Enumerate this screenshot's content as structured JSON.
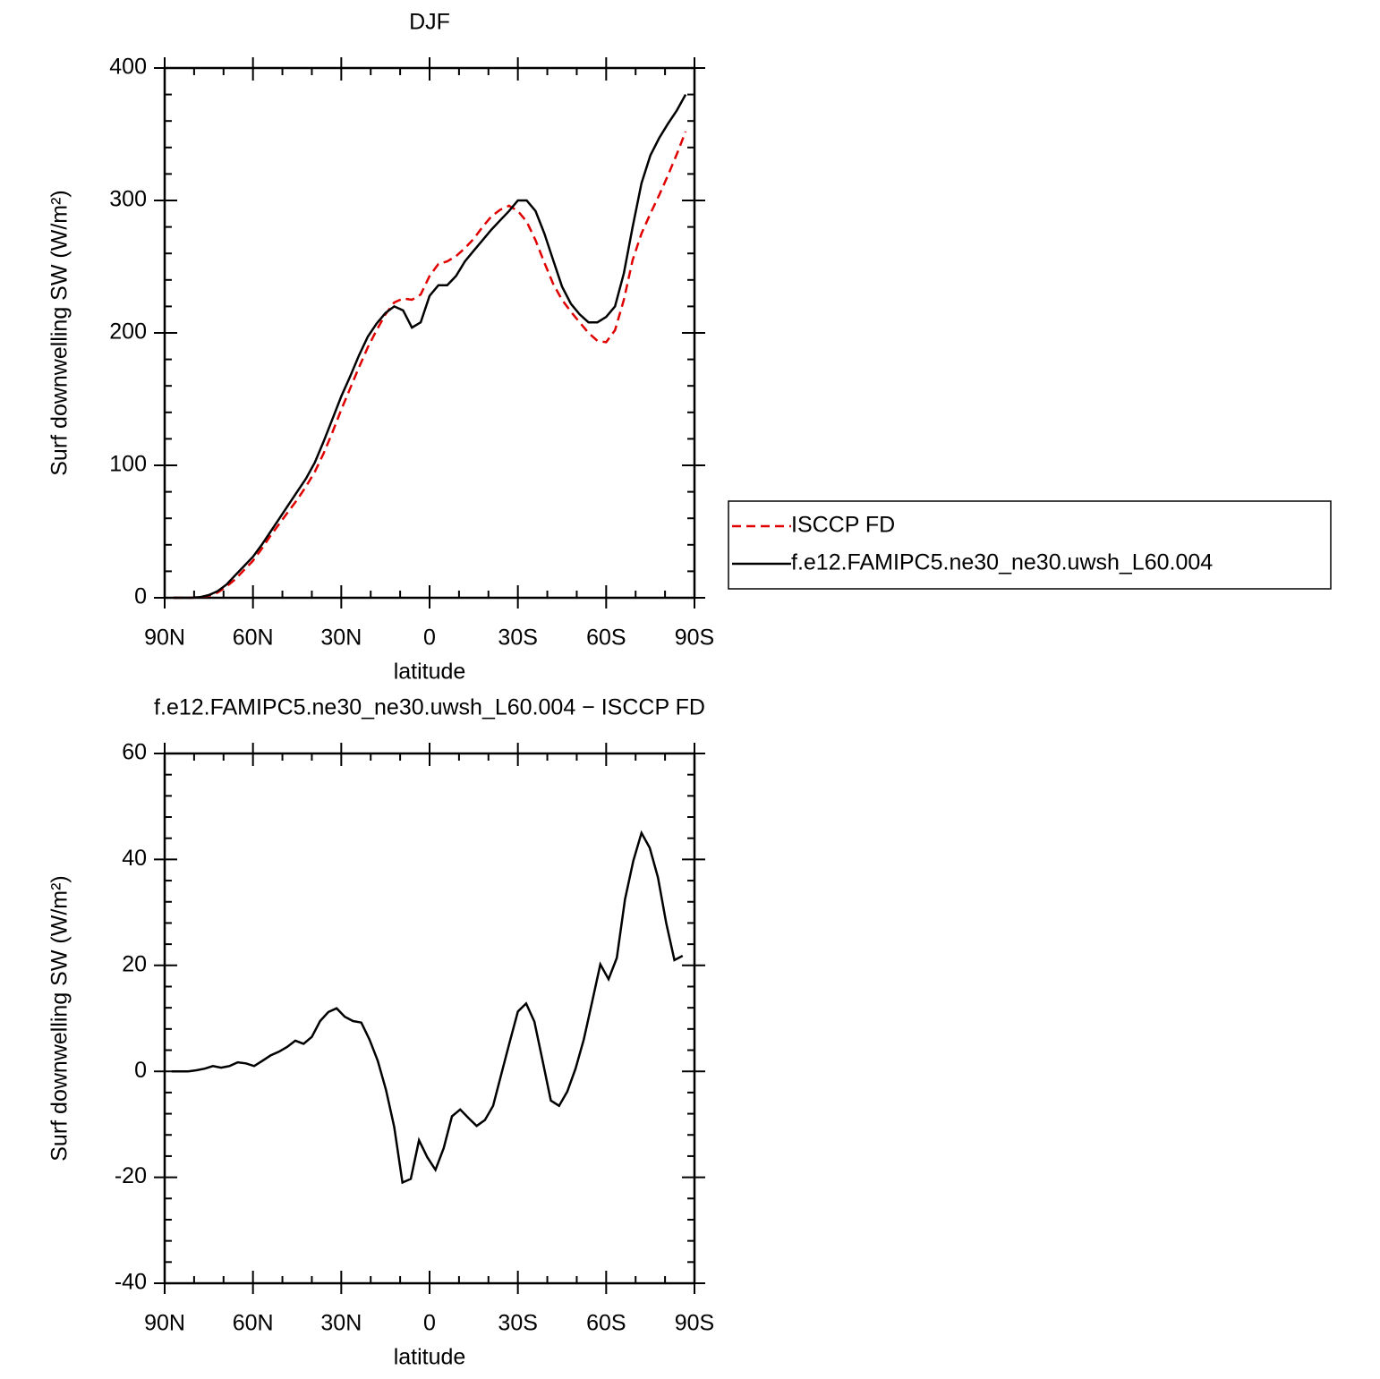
{
  "chart_data": [
    {
      "type": "line",
      "title": "DJF",
      "xlabel": "latitude",
      "ylabel": "Surf downwelling SW (W/m²)",
      "xlim": [
        90,
        -90
      ],
      "ylim": [
        0,
        400
      ],
      "xticks": [
        {
          "value": 90,
          "label": "90N"
        },
        {
          "value": 60,
          "label": "60N"
        },
        {
          "value": 30,
          "label": "30N"
        },
        0,
        {
          "value": -30,
          "label": "30S"
        },
        {
          "value": -60,
          "label": "60S"
        },
        {
          "value": -90,
          "label": "90S"
        }
      ],
      "yticks": [
        0,
        100,
        200,
        300,
        400
      ],
      "legend": "right",
      "x": [
        87,
        84,
        81,
        78,
        75,
        72,
        69,
        66,
        63,
        60,
        57,
        54,
        51,
        48,
        45,
        42,
        39,
        36,
        33,
        30,
        27,
        24,
        21,
        18,
        15,
        12,
        9,
        6,
        3,
        0,
        -3,
        -6,
        -9,
        -12,
        -15,
        -18,
        -21,
        -24,
        -27,
        -30,
        -33,
        -36,
        -39,
        -42,
        -45,
        -48,
        -51,
        -54,
        -57,
        -60,
        -63,
        -66,
        -69,
        -72,
        -75,
        -78,
        -81,
        -84,
        -87
      ],
      "series": [
        {
          "name": "ISCCP FD",
          "color": "#e00000",
          "dash": "dashed",
          "values": [
            0,
            0,
            0,
            0.5,
            1.5,
            4,
            8.5,
            14,
            21,
            28,
            37,
            47,
            56,
            65,
            74,
            84,
            95,
            109,
            125,
            142,
            158,
            174,
            189,
            202,
            214,
            223,
            226,
            225,
            229,
            243,
            252,
            254,
            258,
            264,
            271,
            280,
            288,
            293,
            296,
            292,
            284,
            270,
            253,
            237,
            225,
            216,
            208,
            200,
            194,
            193,
            202,
            225,
            255,
            275,
            290,
            304,
            319,
            335,
            352
          ]
        },
        {
          "name": "f.e12.FAMIPC5.ne30_ne30.uwsh_L60.004",
          "color": "#000000",
          "dash": "solid",
          "values": [
            0,
            0,
            0,
            0.5,
            2,
            5,
            10,
            17,
            24,
            31,
            40,
            50,
            60,
            70,
            80,
            90,
            102,
            118,
            135,
            152,
            167,
            183,
            197,
            207,
            215,
            220,
            217,
            204,
            208,
            228,
            236,
            236,
            243,
            254,
            262,
            270,
            278,
            285,
            292,
            300,
            300,
            292,
            275,
            255,
            235,
            222,
            214,
            208,
            208,
            212,
            220,
            245,
            280,
            313,
            334,
            347,
            358,
            368,
            380
          ]
        }
      ]
    },
    {
      "type": "line",
      "title": "f.e12.FAMIPC5.ne30_ne30.uwsh_L60.004 − ISCCP FD",
      "xlabel": "latitude",
      "ylabel": "Surf downwelling SW (W/m²)",
      "xlim": [
        90,
        -90
      ],
      "ylim": [
        -40,
        60
      ],
      "xticks": [
        {
          "value": 90,
          "label": "90N"
        },
        {
          "value": 60,
          "label": "60N"
        },
        {
          "value": 30,
          "label": "30N"
        },
        0,
        {
          "value": -30,
          "label": "30S"
        },
        {
          "value": -60,
          "label": "60S"
        },
        {
          "value": -90,
          "label": "90S"
        }
      ],
      "yticks": [
        -40,
        -20,
        0,
        20,
        40,
        60
      ],
      "x": [
        87.6,
        84.8,
        82.0,
        79.2,
        76.4,
        73.6,
        70.8,
        68.0,
        65.2,
        62.4,
        59.6,
        56.8,
        54.0,
        51.2,
        48.4,
        45.6,
        42.8,
        40.0,
        37.2,
        34.4,
        31.6,
        28.8,
        26.0,
        23.2,
        20.4,
        17.6,
        14.8,
        12.0,
        9.2,
        6.4,
        3.6,
        0.8,
        -2.0,
        -4.8,
        -7.6,
        -10.4,
        -13.2,
        -16.0,
        -18.8,
        -21.6,
        -24.4,
        -27.2,
        -30.0,
        -32.8,
        -35.6,
        -38.4,
        -41.2,
        -44.0,
        -46.8,
        -49.6,
        -52.4,
        -55.2,
        -58.0,
        -60.8,
        -63.6,
        -66.4,
        -69.2,
        -72.0,
        -74.8,
        -77.6,
        -80.4,
        -83.2,
        -86.0
      ],
      "series": [
        {
          "color": "#000000",
          "dash": "solid",
          "values": [
            0,
            0,
            0,
            0.2,
            0.5,
            1,
            0.7,
            1,
            1.7,
            1.5,
            1,
            2,
            3,
            3.7,
            4.6,
            5.8,
            5.2,
            6.5,
            9.5,
            11.2,
            11.9,
            10.3,
            9.5,
            9.2,
            6,
            2,
            -3.5,
            -10.5,
            -21,
            -20.3,
            -13,
            -16.2,
            -18.6,
            -14.5,
            -8.5,
            -7.2,
            -8.8,
            -10.3,
            -9.2,
            -6.5,
            -0.5,
            5.5,
            11.3,
            12.8,
            9.4,
            2,
            -5.5,
            -6.5,
            -3.8,
            0.5,
            6,
            13,
            20.2,
            17.4,
            21.4,
            32.5,
            39.7,
            45,
            42.2,
            36.6,
            28,
            21,
            21.8
          ]
        }
      ]
    }
  ]
}
